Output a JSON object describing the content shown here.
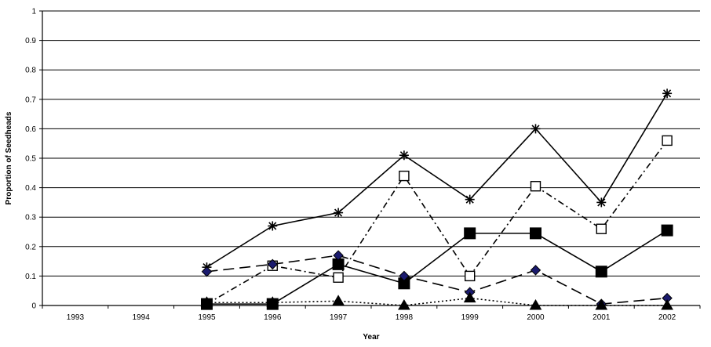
{
  "chart_data": {
    "type": "line",
    "title": "",
    "xlabel": "Year",
    "ylabel": "Proportion of Seedheads",
    "ylim": [
      0,
      1
    ],
    "yticks": [
      "0",
      "0.1",
      "0.2",
      "0.3",
      "0.4",
      "0.5",
      "0.6",
      "0.7",
      "0.8",
      "0.9",
      "1"
    ],
    "categories": [
      "1993",
      "1994",
      "1995",
      "1996",
      "1997",
      "1998",
      "1999",
      "2000",
      "2001",
      "2002"
    ],
    "grid": "horizontal",
    "legend": "none",
    "series": [
      {
        "marker": "star",
        "line": "solid",
        "color": "#000000",
        "values": [
          null,
          null,
          0.13,
          0.27,
          0.315,
          0.51,
          0.36,
          0.6,
          0.35,
          0.72
        ]
      },
      {
        "marker": "open-square",
        "line": "dash-dot",
        "color": "#000000",
        "values": [
          null,
          null,
          0.005,
          0.135,
          0.095,
          0.44,
          0.1,
          0.405,
          0.26,
          0.56
        ]
      },
      {
        "marker": "filled-square",
        "line": "solid",
        "color": "#000000",
        "values": [
          null,
          null,
          0.005,
          0.005,
          0.14,
          0.075,
          0.245,
          0.245,
          0.115,
          0.255
        ]
      },
      {
        "marker": "diamond",
        "line": "long-dash",
        "color": "#000000",
        "marker_color": "#1a1a6e",
        "values": [
          null,
          null,
          0.115,
          0.14,
          0.17,
          0.1,
          0.045,
          0.12,
          0.005,
          0.025
        ]
      },
      {
        "marker": "triangle",
        "line": "dotted",
        "color": "#000000",
        "values": [
          null,
          null,
          0.01,
          0.01,
          0.015,
          0.0,
          0.025,
          0.0,
          0.0,
          0.0
        ]
      }
    ]
  }
}
